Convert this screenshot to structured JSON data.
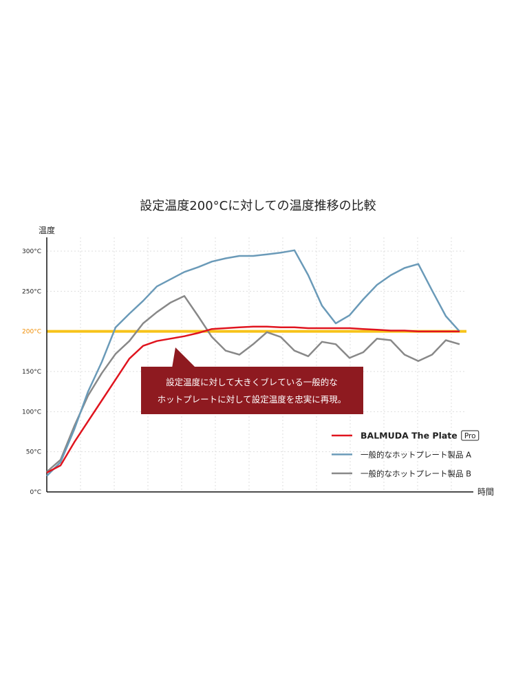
{
  "chart_data": {
    "type": "line",
    "title": "設定温度200°Cに対しての温度推移の比較",
    "y_label": "温度",
    "x_label": "時間",
    "ylim": [
      0,
      300
    ],
    "yticks": [
      {
        "value": 0,
        "label": "0°C"
      },
      {
        "value": 50,
        "label": "50°C"
      },
      {
        "value": 100,
        "label": "100°C"
      },
      {
        "value": 150,
        "label": "150°C"
      },
      {
        "value": 200,
        "label": "200°C"
      },
      {
        "value": 250,
        "label": "250°C"
      },
      {
        "value": 300,
        "label": "300°C"
      }
    ],
    "grid": true,
    "reference_line": {
      "value": 200,
      "color": "#f7c31a",
      "label_color": "#f08c00"
    },
    "annotation": {
      "lines": [
        "設定温度に対して大きくブレている一般的な",
        "ホットプレートに対して設定温度を忠実に再現。"
      ],
      "color": "#8e1a20"
    },
    "legend_position": "lower right",
    "series": [
      {
        "name": "BALMUDA The Plate",
        "badge": "Pro",
        "color": "#e0141e",
        "values": [
          24,
          33,
          62,
          88,
          114,
          140,
          166,
          182,
          188,
          191,
          194,
          198,
          203,
          204,
          205,
          206,
          206,
          205,
          205,
          204,
          204,
          204,
          204,
          203,
          202,
          201,
          201,
          200,
          200,
          200,
          200
        ]
      },
      {
        "name": "一般的なホットプレート製品 A",
        "color": "#6a9ab8",
        "values": [
          20,
          37,
          78,
          125,
          162,
          205,
          222,
          238,
          256,
          265,
          274,
          280,
          287,
          291,
          294,
          294,
          296,
          298,
          301,
          270,
          232,
          210,
          220,
          240,
          258,
          270,
          279,
          284,
          251,
          219,
          200
        ]
      },
      {
        "name": "一般的なホットプレート製品 B",
        "color": "#888888",
        "values": [
          25,
          40,
          82,
          120,
          148,
          172,
          188,
          210,
          224,
          236,
          244,
          219,
          193,
          176,
          171,
          184,
          199,
          193,
          176,
          169,
          187,
          184,
          167,
          174,
          191,
          189,
          171,
          163,
          171,
          189,
          184
        ]
      }
    ]
  }
}
